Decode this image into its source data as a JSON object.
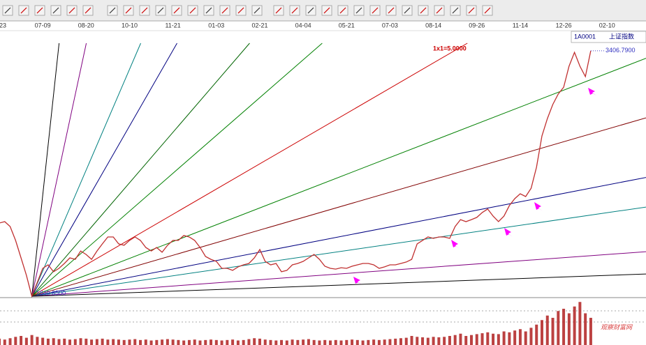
{
  "chart_data": {
    "type": "line",
    "symbol": "1A0001",
    "categories": [
      "23",
      null,
      null,
      null,
      null,
      null,
      null,
      null,
      "07-09",
      null,
      null,
      null,
      null,
      null,
      null,
      null,
      "08-20",
      null,
      null,
      null,
      null,
      null,
      null,
      null,
      "10-10",
      null,
      null,
      null,
      null,
      null,
      null,
      null,
      "11-21",
      null,
      null,
      null,
      null,
      null,
      null,
      null,
      "01-03",
      null,
      null,
      null,
      null,
      null,
      null,
      null,
      "02-21",
      null,
      null,
      null,
      null,
      null,
      null,
      null,
      "04-04",
      null,
      null,
      null,
      null,
      null,
      null,
      null,
      "05-21",
      null,
      null,
      null,
      null,
      null,
      null,
      null,
      "07-03",
      null,
      null,
      null,
      null,
      null,
      null,
      null,
      "08-14",
      null,
      null,
      null,
      null,
      null,
      null,
      null,
      "09-26",
      null,
      null,
      null,
      null,
      null,
      null,
      null,
      "11-14",
      null,
      null,
      null,
      null,
      null,
      null,
      null,
      "12-26",
      null,
      null,
      null,
      null,
      null,
      null,
      null,
      "02-10"
    ],
    "ylim": [
      1850,
      3530
    ],
    "y2lim": [
      0,
      100
    ],
    "series": [
      {
        "name": "上证指数",
        "color": "#c03030",
        "values": [
          2314,
          2323,
          2292,
          2204,
          2093,
          1983,
          1849.65,
          1938,
          2027,
          2049,
          2005,
          2027,
          2058,
          2093,
          2084,
          2137,
          2115,
          2084,
          2137,
          2182,
          2226,
          2226,
          2182,
          2173,
          2204,
          2226,
          2204,
          2159,
          2137,
          2159,
          2129,
          2173,
          2204,
          2204,
          2235,
          2226,
          2204,
          2159,
          2102,
          2084,
          2071,
          2027,
          2027,
          2014,
          2036,
          2049,
          2058,
          2093,
          2146,
          2071,
          2049,
          2058,
          2005,
          2014,
          2049,
          2058,
          2071,
          2093,
          2115,
          2084,
          2040,
          2027,
          2022,
          2031,
          2027,
          2040,
          2049,
          2058,
          2058,
          2049,
          2027,
          2036,
          2049,
          2049,
          2058,
          2067,
          2084,
          2182,
          2204,
          2226,
          2217,
          2226,
          2226,
          2217,
          2292,
          2336,
          2323,
          2336,
          2350,
          2381,
          2403,
          2358,
          2323,
          2358,
          2425,
          2469,
          2500,
          2482,
          2535,
          2668,
          2867,
          2977,
          3066,
          3132,
          3176,
          3309,
          3397,
          3309,
          3243,
          3406.79,
          null,
          null,
          null
        ],
        "value_labels": [
          null,
          null,
          null,
          null,
          null,
          null,
          "1849.6500",
          null,
          null,
          null,
          null,
          null,
          null,
          null,
          null,
          null,
          null,
          null,
          null,
          null,
          null,
          null,
          null,
          null,
          null,
          null,
          null,
          null,
          null,
          null,
          null,
          null,
          null,
          null,
          null,
          null,
          null,
          null,
          null,
          null,
          null,
          null,
          null,
          null,
          null,
          null,
          null,
          null,
          null,
          null,
          null,
          null,
          null,
          null,
          null,
          null,
          null,
          null,
          null,
          null,
          null,
          null,
          null,
          null,
          null,
          null,
          null,
          null,
          null,
          null,
          null,
          null,
          null,
          null,
          null,
          null,
          null,
          null,
          null,
          null,
          null,
          null,
          null,
          null,
          null,
          null,
          null,
          null,
          null,
          null,
          null,
          null,
          null,
          null,
          null,
          null,
          null,
          null,
          null,
          null,
          null,
          null,
          null,
          null,
          null,
          null,
          null,
          null,
          null,
          "3406.7900",
          null,
          null,
          null
        ]
      },
      {
        "type": "bar",
        "axis": "y2",
        "color": "#b02020",
        "values": [
          14,
          12,
          15,
          18,
          20,
          16,
          22,
          18,
          16,
          14,
          15,
          13,
          14,
          12,
          13,
          15,
          14,
          12,
          13,
          14,
          12,
          13,
          12,
          11,
          12,
          13,
          11,
          12,
          10,
          11,
          12,
          13,
          12,
          11,
          10,
          11,
          12,
          10,
          11,
          12,
          11,
          10,
          11,
          12,
          10,
          11,
          13,
          15,
          14,
          12,
          11,
          10,
          11,
          10,
          12,
          11,
          12,
          13,
          11,
          10,
          11,
          10,
          11,
          10,
          11,
          12,
          11,
          10,
          11,
          12,
          11,
          12,
          13,
          14,
          15,
          16,
          20,
          18,
          17,
          16,
          18,
          17,
          18,
          20,
          22,
          25,
          20,
          22,
          24,
          26,
          28,
          25,
          24,
          30,
          28,
          32,
          35,
          30,
          38,
          45,
          55,
          65,
          60,
          75,
          80,
          70,
          85,
          95,
          70,
          60,
          null,
          null,
          null
        ]
      }
    ],
    "fan": {
      "origin_index": 6,
      "unit": {
        "value": 5,
        "label": "1x1=5.0000"
      },
      "ratios": [
        16,
        8,
        4,
        3,
        2,
        1.5,
        1,
        0.667,
        0.5,
        0.333,
        0.25,
        0.125,
        0.0625
      ],
      "colors": [
        "#000000",
        "#800080",
        "#008080",
        "#000080",
        "#006400",
        "#008000",
        "#cc0000",
        "#008000",
        "#800000",
        "#000080",
        "#008080",
        "#800080",
        "#000000"
      ]
    },
    "watermark": "观察财富网"
  }
}
